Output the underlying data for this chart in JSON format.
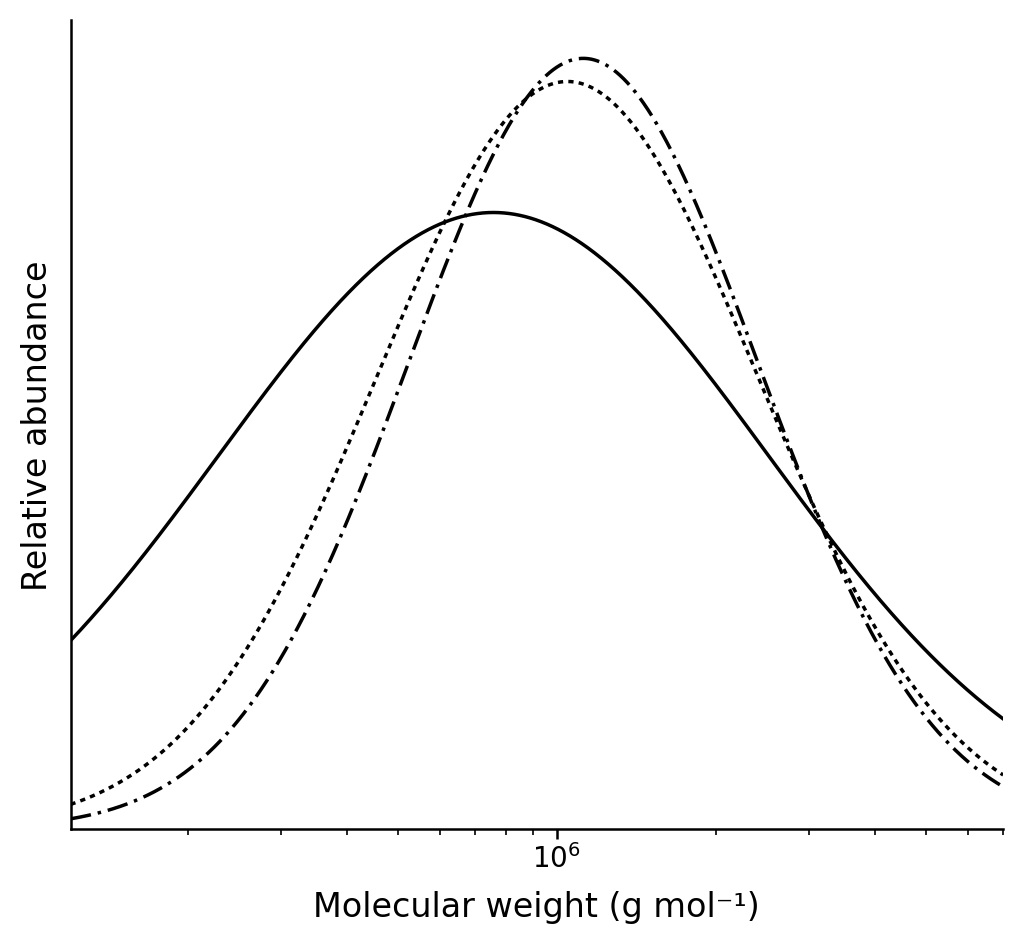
{
  "xlabel": "Molecular weight (g mol⁻¹)",
  "ylabel": "Relative abundance",
  "xmin": 120000.0,
  "xmax": 7000000.0,
  "ymin": 0.0,
  "ymax": 1.05,
  "line_color": "#000000",
  "background_color": "#ffffff",
  "line_width": 2.5,
  "curve1_mu": 5.88,
  "curve1_sigma": 0.52,
  "curve1_amp": 0.8,
  "curve2_mu": 6.05,
  "curve2_sigma": 0.33,
  "curve2_amp": 1.0,
  "curve3_mu": 6.02,
  "curve3_sigma": 0.36,
  "curve3_amp": 0.97,
  "xlabel_fontsize": 24,
  "ylabel_fontsize": 24,
  "tick_fontsize": 20
}
